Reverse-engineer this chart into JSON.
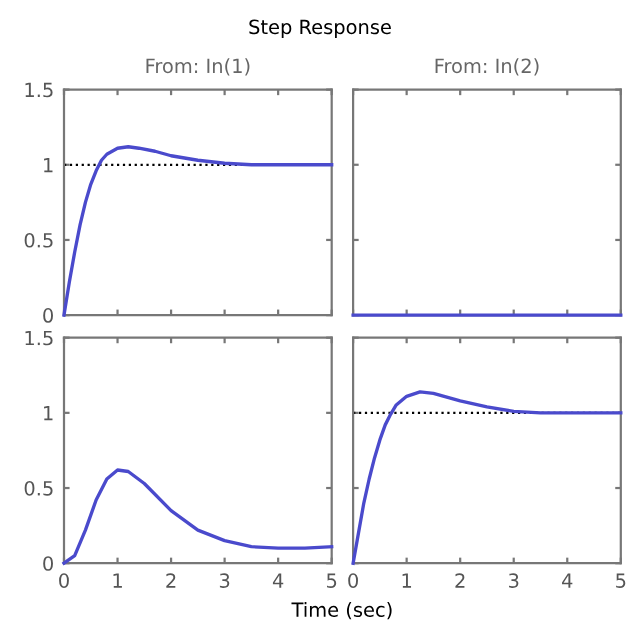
{
  "chart_data": [
    {
      "type": "line",
      "title": "From: In(1)",
      "annotations": [
        "Step Response"
      ],
      "x": [
        0,
        0.1,
        0.2,
        0.3,
        0.4,
        0.5,
        0.6,
        0.7,
        0.8,
        1.0,
        1.2,
        1.4,
        1.7,
        2,
        2.5,
        3,
        3.5,
        4,
        5
      ],
      "series": [
        {
          "color": "#4a4acc",
          "values": [
            0,
            0.22,
            0.42,
            0.6,
            0.75,
            0.87,
            0.96,
            1.03,
            1.07,
            1.11,
            1.12,
            1.11,
            1.09,
            1.06,
            1.03,
            1.01,
            1.0,
            1.0,
            1.0
          ]
        }
      ],
      "xlim": [
        0,
        5
      ],
      "ylim": [
        0,
        1.5
      ],
      "xticks": [
        0,
        1,
        2,
        3,
        4,
        5
      ],
      "yticks": [
        0,
        0.5,
        1,
        1.5
      ],
      "tick_labels": "y",
      "grid": false,
      "line_style": "solid",
      "ref_lines": [
        {
          "axis": "y",
          "value": 1,
          "color": "#000000",
          "line_style": "dotted"
        }
      ]
    },
    {
      "type": "line",
      "title": "From: In(2)",
      "x": [
        0,
        5
      ],
      "series": [
        {
          "color": "#4a4acc",
          "values": [
            0,
            0
          ]
        }
      ],
      "xlim": [
        0,
        5
      ],
      "ylim": [
        0,
        1.5
      ],
      "xticks": [
        0,
        1,
        2,
        3,
        4,
        5
      ],
      "yticks": [
        0,
        0.5,
        1,
        1.5
      ],
      "tick_labels": false,
      "grid": false,
      "line_style": "solid"
    },
    {
      "type": "line",
      "xlabel": "Time (sec)",
      "x": [
        0,
        0.2,
        0.4,
        0.6,
        0.8,
        1.0,
        1.2,
        1.5,
        2,
        2.5,
        3,
        3.5,
        4,
        4.5,
        5
      ],
      "series": [
        {
          "color": "#4a4acc",
          "values": [
            0,
            0.05,
            0.22,
            0.42,
            0.56,
            0.62,
            0.61,
            0.53,
            0.35,
            0.22,
            0.15,
            0.11,
            0.1,
            0.1,
            0.11
          ]
        }
      ],
      "xlim": [
        0,
        5
      ],
      "ylim": [
        0,
        1.5
      ],
      "xticks": [
        0,
        1,
        2,
        3,
        4,
        5
      ],
      "yticks": [
        0,
        0.5,
        1,
        1.5
      ],
      "grid": false,
      "line_style": "solid"
    },
    {
      "type": "line",
      "x": [
        0,
        0.1,
        0.2,
        0.3,
        0.4,
        0.5,
        0.6,
        0.7,
        0.8,
        1.0,
        1.25,
        1.5,
        2,
        2.5,
        3,
        3.5,
        4,
        5
      ],
      "series": [
        {
          "color": "#4a4acc",
          "values": [
            0,
            0.2,
            0.4,
            0.56,
            0.7,
            0.82,
            0.92,
            0.99,
            1.05,
            1.11,
            1.14,
            1.13,
            1.08,
            1.04,
            1.01,
            1.0,
            1.0,
            1.0
          ]
        }
      ],
      "xlim": [
        0,
        5
      ],
      "ylim": [
        0,
        1.5
      ],
      "xticks": [
        0,
        1,
        2,
        3,
        4,
        5
      ],
      "yticks": [
        0,
        0.5,
        1,
        1.5
      ],
      "tick_labels": "x",
      "grid": false,
      "line_style": "solid",
      "ref_lines": [
        {
          "axis": "y",
          "value": 1,
          "color": "#000000",
          "line_style": "dotted"
        }
      ]
    }
  ]
}
